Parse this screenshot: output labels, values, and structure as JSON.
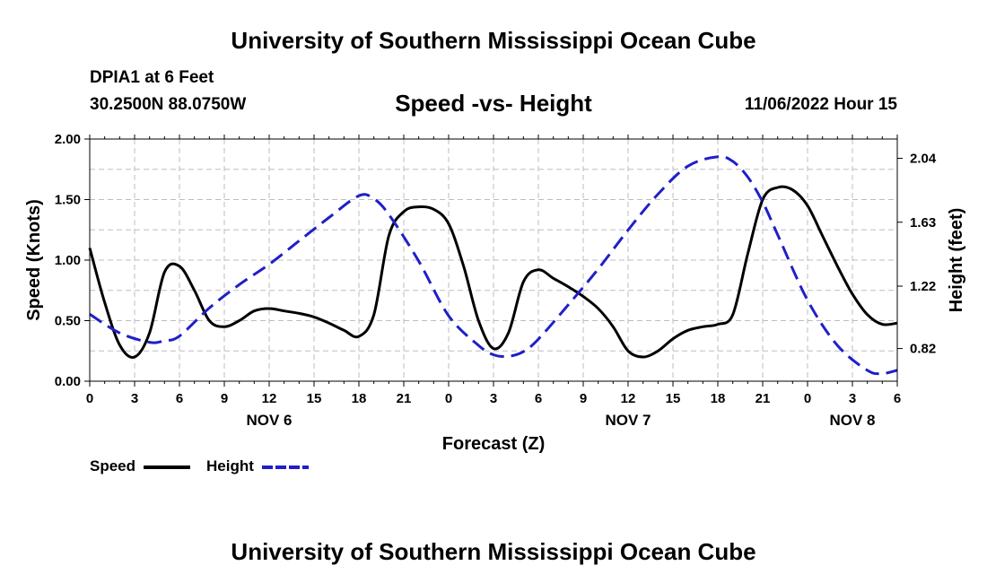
{
  "header": {
    "title": "University of Southern Mississippi Ocean Cube",
    "station": "DPIA1 at 6 Feet",
    "coords": "30.2500N  88.0750W",
    "subtitle": "Speed -vs- Height",
    "datetime": "11/06/2022 Hour 15"
  },
  "footer": {
    "title": "University of Southern Mississippi Ocean Cube"
  },
  "colors": {
    "speed": "#000000",
    "height": "#1f1fc8",
    "grid": "#bdbdbd"
  },
  "chart_data": {
    "type": "line",
    "xlabel": "Forecast (Z)",
    "ylabel": "Speed (Knots)",
    "y2label": "Height (feet)",
    "xlim": [
      0,
      54
    ],
    "ylim": [
      0,
      2
    ],
    "y2lim": [
      0.6105,
      2.1635
    ],
    "x_ticks": [
      0,
      3,
      6,
      9,
      12,
      15,
      18,
      21,
      24,
      27,
      30,
      33,
      36,
      39,
      42,
      45,
      48,
      51,
      54
    ],
    "x_tick_labels": [
      "0",
      "3",
      "6",
      "9",
      "12",
      "15",
      "18",
      "21",
      "0",
      "3",
      "6",
      "9",
      "12",
      "15",
      "18",
      "21",
      "0",
      "3",
      "6"
    ],
    "y_ticks": [
      0,
      0.5,
      1.0,
      1.5,
      2.0
    ],
    "y_tick_labels": [
      "0.00",
      "0.50",
      "1.00",
      "1.50",
      "2.00"
    ],
    "y2_ticks": [
      0.82,
      1.22,
      1.63,
      2.04
    ],
    "y2_tick_labels": [
      "0.82",
      "1.22",
      "1.63",
      "2.04"
    ],
    "day_labels": [
      {
        "x": 12,
        "label": "NOV 6"
      },
      {
        "x": 36,
        "label": "NOV 7"
      },
      {
        "x": 51,
        "label": "NOV 8"
      }
    ],
    "grid": true,
    "legend": [
      {
        "name": "Speed",
        "style": "solid"
      },
      {
        "name": "Height",
        "style": "dashed"
      }
    ],
    "series": [
      {
        "name": "Speed",
        "axis": "left",
        "style": "solid",
        "x": [
          0,
          1,
          2,
          3,
          4,
          5,
          6,
          7,
          8,
          9,
          10,
          11,
          12,
          13,
          14,
          15,
          16,
          17,
          18,
          19,
          20,
          21,
          22,
          23,
          24,
          25,
          26,
          27,
          28,
          29,
          30,
          31,
          32,
          33,
          34,
          35,
          36,
          37,
          38,
          39,
          40,
          41,
          42,
          43,
          44,
          45,
          46,
          47,
          48,
          49,
          50,
          51,
          52,
          53,
          54
        ],
        "values": [
          1.1,
          0.65,
          0.3,
          0.2,
          0.4,
          0.9,
          0.95,
          0.75,
          0.5,
          0.45,
          0.5,
          0.58,
          0.6,
          0.58,
          0.56,
          0.53,
          0.48,
          0.42,
          0.37,
          0.55,
          1.2,
          1.4,
          1.44,
          1.42,
          1.3,
          0.95,
          0.5,
          0.27,
          0.4,
          0.82,
          0.92,
          0.85,
          0.78,
          0.7,
          0.6,
          0.45,
          0.25,
          0.2,
          0.25,
          0.35,
          0.42,
          0.45,
          0.47,
          0.55,
          1.05,
          1.5,
          1.6,
          1.58,
          1.45,
          1.2,
          0.95,
          0.72,
          0.55,
          0.47,
          0.48
        ]
      },
      {
        "name": "Height",
        "axis": "right",
        "style": "dashed",
        "x": [
          0,
          2,
          4,
          5,
          6,
          8,
          10,
          12,
          14,
          16,
          18,
          19,
          20,
          22,
          24,
          26,
          27,
          28,
          29,
          30,
          32,
          34,
          36,
          38,
          40,
          42,
          43,
          44,
          45,
          46,
          48,
          50,
          52,
          53,
          54
        ],
        "values": [
          1.04,
          0.92,
          0.86,
          0.87,
          0.9,
          1.08,
          1.23,
          1.36,
          1.51,
          1.66,
          1.8,
          1.78,
          1.68,
          1.38,
          1.03,
          0.84,
          0.78,
          0.77,
          0.8,
          0.88,
          1.1,
          1.33,
          1.58,
          1.81,
          1.99,
          2.05,
          2.02,
          1.92,
          1.76,
          1.55,
          1.13,
          0.84,
          0.68,
          0.66,
          0.68
        ]
      }
    ]
  }
}
